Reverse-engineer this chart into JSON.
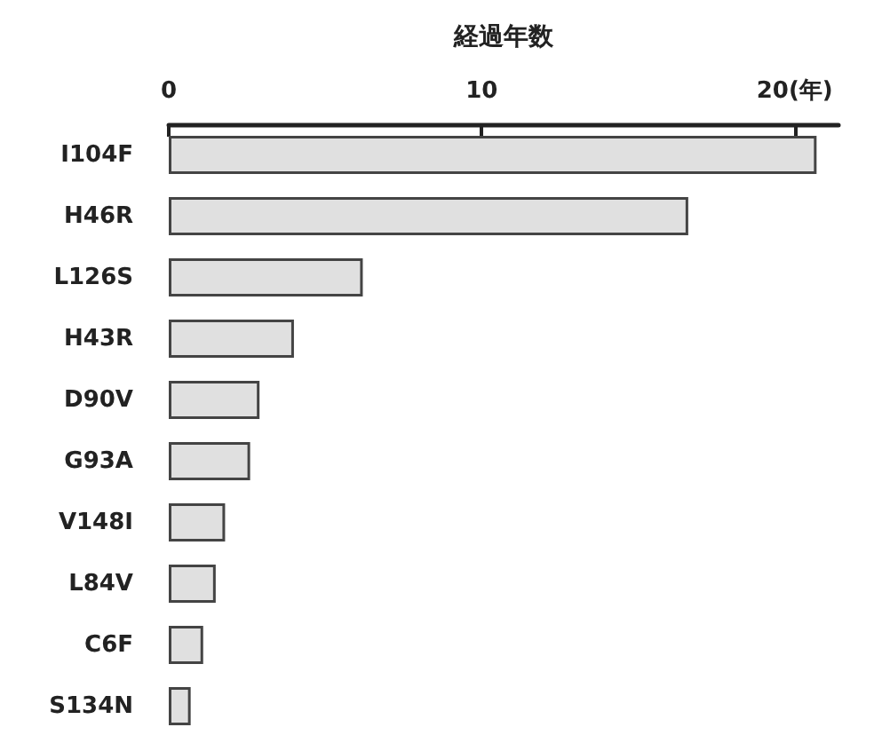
{
  "chart_data": {
    "type": "bar",
    "orientation": "horizontal",
    "xlabel": "経過年数",
    "categories": [
      "I104F",
      "H46R",
      "L126S",
      "H43R",
      "D90V",
      "G93A",
      "V148I",
      "L84V",
      "C6F",
      "S134N"
    ],
    "values": [
      20.7,
      16.6,
      6.2,
      4.0,
      2.9,
      2.6,
      1.8,
      1.5,
      1.1,
      0.7
    ],
    "color": "#e0e0e0",
    "xlim": [
      0,
      21.4
    ],
    "xticks": [
      0,
      10,
      {
        "value": 20,
        "label": "20(年)"
      }
    ],
    "grid": false
  }
}
